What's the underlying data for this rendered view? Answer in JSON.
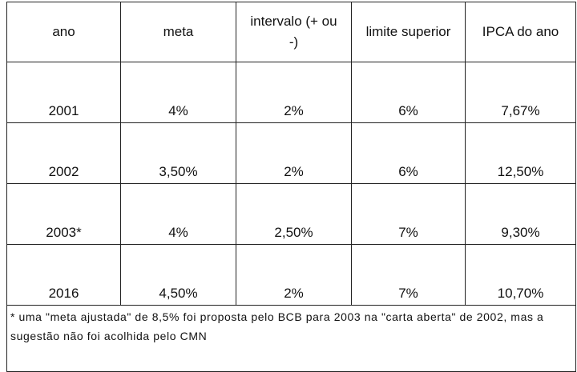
{
  "table": {
    "header": [
      "ano",
      "meta",
      "intervalo (+ ou -)",
      "limite superior",
      "IPCA do ano"
    ],
    "rows": [
      [
        "2001",
        "4%",
        "2%",
        "6%",
        "7,67%"
      ],
      [
        "2002",
        "3,50%",
        "2%",
        "6%",
        "12,50%"
      ],
      [
        "2003*",
        "4%",
        "2,50%",
        "7%",
        "9,30%"
      ],
      [
        "2016",
        "4,50%",
        "2%",
        "7%",
        "10,70%"
      ]
    ],
    "footnote": "* uma \"meta ajustada\" de 8,5% foi proposta pelo BCB para 2003 na \"carta aberta\" de 2002, mas a sugestão não foi acolhida pelo CMN"
  }
}
